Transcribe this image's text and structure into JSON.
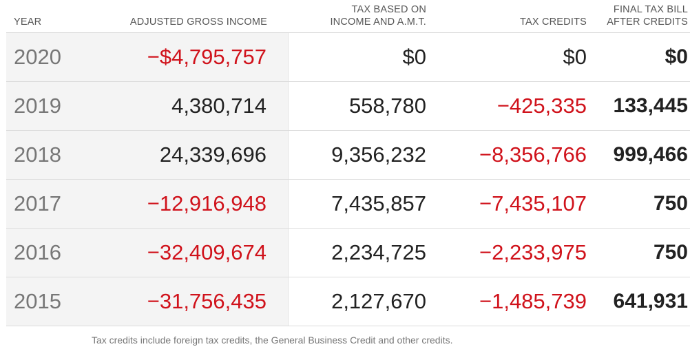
{
  "table": {
    "headers": {
      "year": "YEAR",
      "agi": "ADJUSTED GROSS INCOME",
      "tax_line1": "TAX BASED ON",
      "tax_line2": "INCOME AND A.M.T.",
      "credits": "TAX CREDITS",
      "final_line1": "FINAL TAX BILL",
      "final_line2": "AFTER CREDITS"
    },
    "rows": [
      {
        "year": "2020",
        "agi": "−$4,795,757",
        "agi_negative": true,
        "tax": "$0",
        "credits": "$0",
        "credits_negative": false,
        "final": "$0"
      },
      {
        "year": "2019",
        "agi": "4,380,714",
        "agi_negative": false,
        "tax": "558,780",
        "credits": "−425,335",
        "credits_negative": true,
        "final": "133,445"
      },
      {
        "year": "2018",
        "agi": "24,339,696",
        "agi_negative": false,
        "tax": "9,356,232",
        "credits": "−8,356,766",
        "credits_negative": true,
        "final": "999,466"
      },
      {
        "year": "2017",
        "agi": "−12,916,948",
        "agi_negative": true,
        "tax": "7,435,857",
        "credits": "−7,435,107",
        "credits_negative": true,
        "final": "750"
      },
      {
        "year": "2016",
        "agi": "−32,409,674",
        "agi_negative": true,
        "tax": "2,234,725",
        "credits": "−2,233,975",
        "credits_negative": true,
        "final": "750"
      },
      {
        "year": "2015",
        "agi": "−31,756,435",
        "agi_negative": true,
        "tax": "2,127,670",
        "credits": "−1,485,739",
        "credits_negative": true,
        "final": "641,931"
      }
    ]
  },
  "note": "Tax credits include foreign tax credits, the General Business Credit and other credits.",
  "colors": {
    "negative": "#d0121b",
    "text": "#222222",
    "muted": "#777777",
    "first_column_bg": "#f4f4f4"
  }
}
